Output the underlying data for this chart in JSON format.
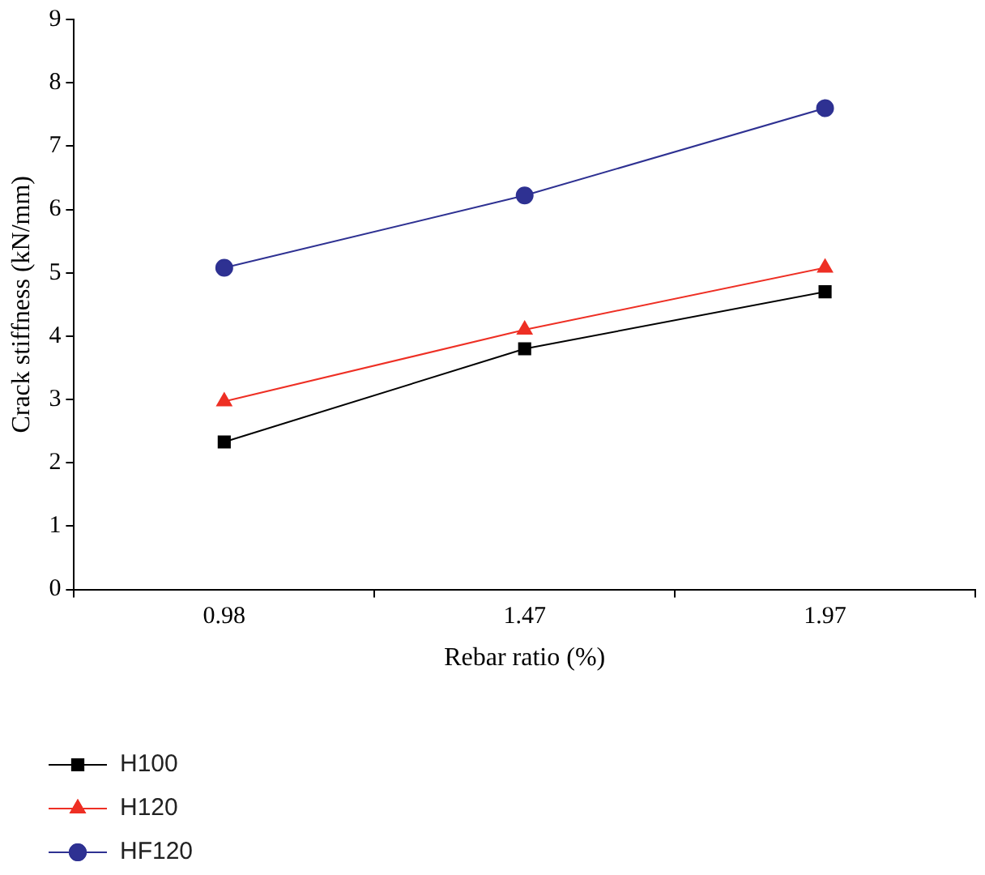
{
  "chart_data": {
    "type": "line",
    "xlabel": "Rebar ratio (%)",
    "ylabel": "Crack stiffness (kN/mm)",
    "categories": [
      "0.98",
      "1.47",
      "1.97"
    ],
    "ylim": [
      0,
      9
    ],
    "yticks": [
      0,
      1,
      2,
      3,
      4,
      5,
      6,
      7,
      8,
      9
    ],
    "grid": false,
    "legend": "bottom left",
    "line_style": "solid",
    "series": [
      {
        "name": "H100",
        "color": "#000000",
        "marker": "square",
        "values": [
          2.33,
          3.8,
          4.7
        ]
      },
      {
        "name": "H120",
        "color": "#ee2f24",
        "marker": "triangle",
        "values": [
          2.97,
          4.1,
          5.08
        ]
      },
      {
        "name": "HF120",
        "color": "#2e3192",
        "marker": "circle",
        "values": [
          5.08,
          6.22,
          7.6
        ]
      }
    ]
  }
}
